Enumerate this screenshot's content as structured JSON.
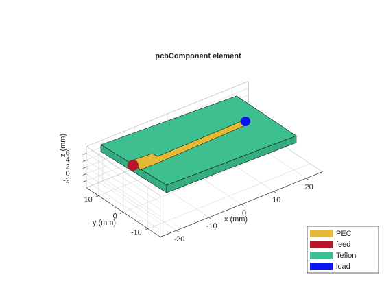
{
  "chart_data": {
    "type": "3d",
    "title": "pcbComponent element",
    "x_label": "x (mm)",
    "y_label": "y (mm)",
    "z_label": "z (mm)",
    "xlim": [
      -25,
      25
    ],
    "ylim": [
      -15,
      15
    ],
    "zlim": [
      -4,
      8
    ],
    "xticks": [
      -20,
      -10,
      0,
      10,
      20
    ],
    "yticks": [
      -10,
      0,
      10
    ],
    "zticks": [
      -2,
      0,
      2,
      4,
      6
    ],
    "grid": true,
    "legend_position": "southeast",
    "series": [
      {
        "name": "PEC",
        "color": "#e3b935"
      },
      {
        "name": "feed",
        "color": "#b5162c"
      },
      {
        "name": "Teflon",
        "color": "#3dbf8f"
      },
      {
        "name": "load",
        "color": "#0a14f0"
      }
    ]
  }
}
